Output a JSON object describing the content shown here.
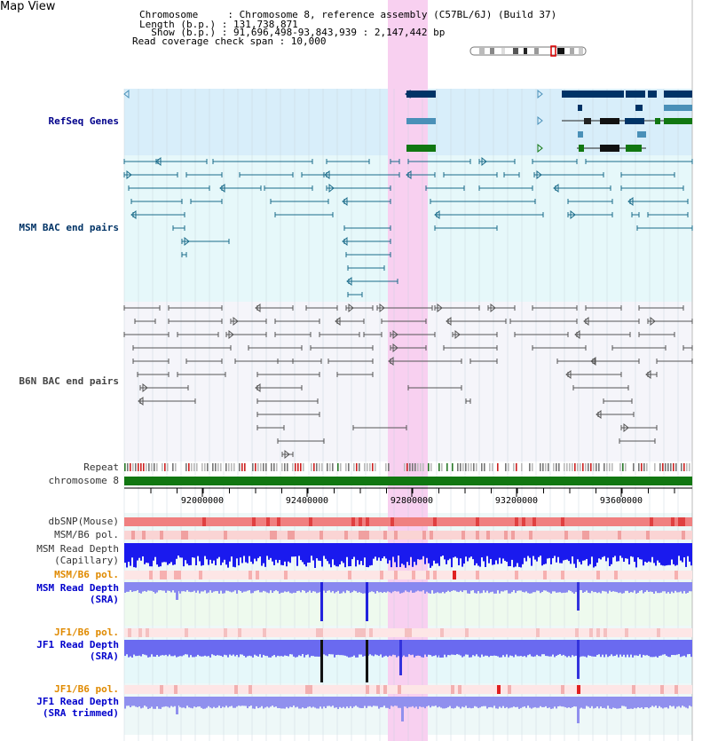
{
  "header": {
    "map_title": "Map View",
    "chromosome_line": "Chromosome     : Chromosome 8, reference assembly (C57BL/6J) (Build 37)",
    "length_line": "Length (b.p.) : 131,738,871",
    "show_line": "  Show (b.p.) : 91,696,498-93,843,939 : 2,147,442 bp",
    "coverage_line": "Read coverage check span : 10,000"
  },
  "tracks": {
    "refseq": "RefSeq Genes",
    "msm_bac": "MSM BAC end pairs",
    "b6n_bac": "B6N BAC end pairs",
    "repeat": "Repeat",
    "chromosome": "chromosome 8",
    "dbsnp": "dbSNP(Mouse)",
    "msm_b6_pol": "MSM/B6 pol.",
    "msm_depth_cap_1": "MSM Read Depth",
    "msm_depth_cap_2": "(Capillary)",
    "msm_b6_pol_sra": "MSM/B6 pol.",
    "msm_depth_sra_1": "MSM Read Depth",
    "msm_depth_sra_2": "(SRA)",
    "jf1_b6_pol": "JF1/B6 pol.",
    "jf1_depth_sra_1": "JF1 Read Depth",
    "jf1_depth_sra_2": "(SRA)",
    "jf1_b6_pol_trim": "JF1/B6 pol.",
    "jf1_depth_trim_1": "JF1 Read Depth",
    "jf1_depth_trim_2": "(SRA trimmed)"
  },
  "ruler": {
    "ticks": [
      "92000000",
      "92400000",
      "92800000",
      "93200000",
      "93600000"
    ]
  },
  "colors": {
    "highlight": "#f8d0f0",
    "refseq_bg": "#d8eefa",
    "msm_bac_bg": "#e6f8fa",
    "b6n_bac_bg": "#f5f5fa",
    "gene_navy": "#003366",
    "gene_blue": "#4a90b8",
    "gene_green": "#117711",
    "msm_line": "#1a6b8a",
    "b6n_line": "#555555",
    "depth_dark": "#1a1aee",
    "depth_light": "#6a6af0",
    "chrom_green": "#117711"
  }
}
